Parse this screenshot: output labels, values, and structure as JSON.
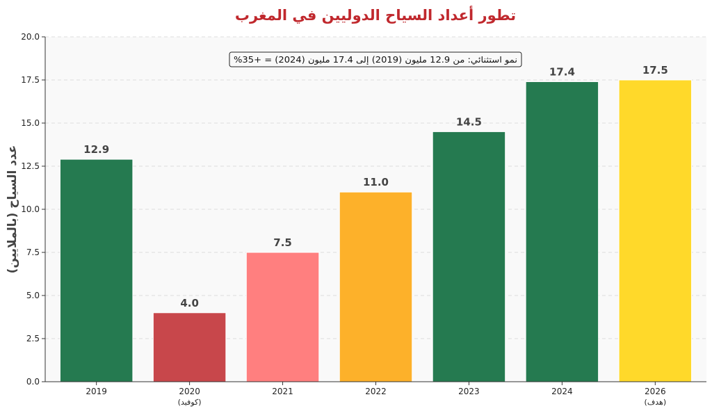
{
  "chart_data": {
    "type": "bar",
    "title": "تطور أعداد السياح الدوليين في المغرب",
    "xlabel": "",
    "ylabel": "عدد السياح (بالملايين)",
    "ylim": [
      0,
      20
    ],
    "yticks": [
      "0.0",
      "2.5",
      "5.0",
      "7.5",
      "10.0",
      "12.5",
      "15.0",
      "17.5",
      "20.0"
    ],
    "grid": true,
    "categories": [
      "2019",
      "2020",
      "2021",
      "2022",
      "2023",
      "2024",
      "2026"
    ],
    "sublabels": [
      "",
      "(كوفيد)",
      "",
      "",
      "",
      "",
      "(هدف)"
    ],
    "values": [
      12.9,
      4.0,
      7.5,
      11.0,
      14.5,
      17.4,
      17.5
    ],
    "value_labels": [
      "12.9",
      "4.0",
      "7.5",
      "11.0",
      "14.5",
      "17.4",
      "17.5"
    ],
    "colors": [
      "#257a50",
      "#c8474b",
      "#ff7f7f",
      "#fdb12a",
      "#257a50",
      "#257a50",
      "#ffd92a"
    ],
    "annotation": "نمو استثنائي: من 12.9 مليون (2019) إلى 17.4 مليون (2024) = +35%"
  }
}
